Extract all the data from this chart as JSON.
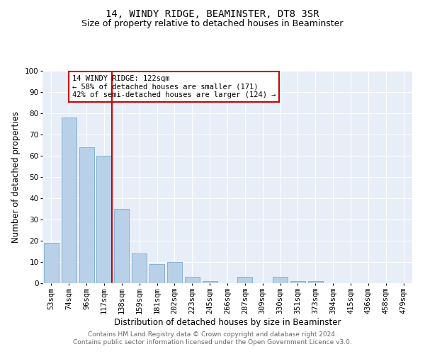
{
  "title": "14, WINDY RIDGE, BEAMINSTER, DT8 3SR",
  "subtitle": "Size of property relative to detached houses in Beaminster",
  "xlabel": "Distribution of detached houses by size in Beaminster",
  "ylabel": "Number of detached properties",
  "categories": [
    "53sqm",
    "74sqm",
    "96sqm",
    "117sqm",
    "138sqm",
    "159sqm",
    "181sqm",
    "202sqm",
    "223sqm",
    "245sqm",
    "266sqm",
    "287sqm",
    "309sqm",
    "330sqm",
    "351sqm",
    "373sqm",
    "394sqm",
    "415sqm",
    "436sqm",
    "458sqm",
    "479sqm"
  ],
  "values": [
    19,
    78,
    64,
    60,
    35,
    14,
    9,
    10,
    3,
    1,
    0,
    3,
    0,
    3,
    1,
    1,
    0,
    0,
    0,
    0,
    0
  ],
  "bar_color": "#b8d0e8",
  "bar_edgecolor": "#7aaccc",
  "vline_color": "#cc0000",
  "vline_pos": 3.425,
  "annotation_text": "14 WINDY RIDGE: 122sqm\n← 58% of detached houses are smaller (171)\n42% of semi-detached houses are larger (124) →",
  "annotation_box_color": "#cc0000",
  "ylim": [
    0,
    100
  ],
  "yticks": [
    0,
    10,
    20,
    30,
    40,
    50,
    60,
    70,
    80,
    90,
    100
  ],
  "background_color": "#e8eef8",
  "grid_color": "#ffffff",
  "footer": "Contains HM Land Registry data © Crown copyright and database right 2024.\nContains public sector information licensed under the Open Government Licence v3.0.",
  "title_fontsize": 10,
  "subtitle_fontsize": 9,
  "xlabel_fontsize": 8.5,
  "ylabel_fontsize": 8.5,
  "tick_fontsize": 7.5,
  "annotation_fontsize": 7.5,
  "footer_fontsize": 6.5
}
